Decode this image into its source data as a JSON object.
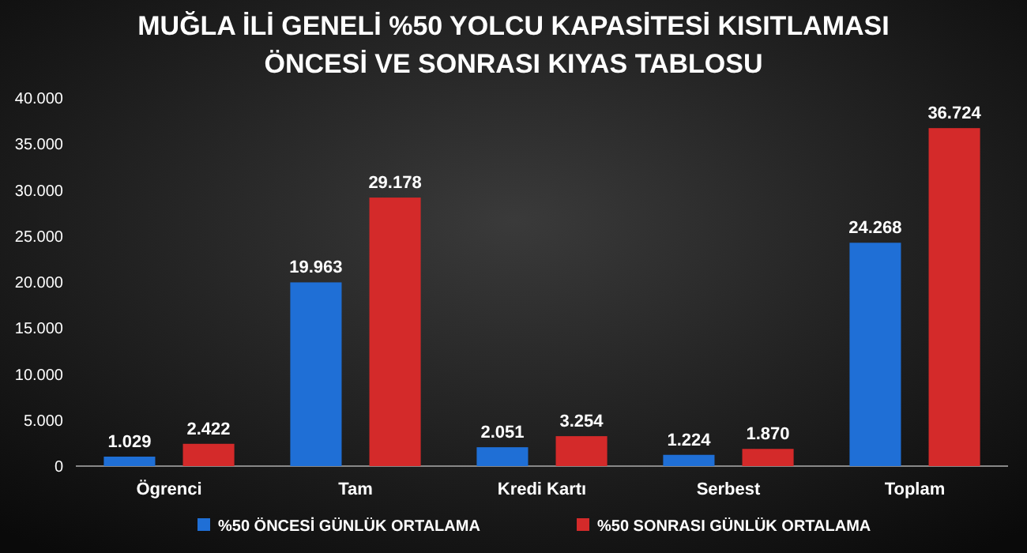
{
  "chart_data": {
    "type": "bar",
    "title": "MUĞLA İLİ GENELİ %50 YOLCU KAPASİTESİ KISITLAMASI\nÖNCESİ VE SONRASI KIYAS TABLOSU",
    "categories": [
      "Ögrenci",
      "Tam",
      "Kredi Kartı",
      "Serbest",
      "Toplam"
    ],
    "series": [
      {
        "name": "%50 ÖNCESİ GÜNLÜK ORTALAMA",
        "color": "#1f6fd6",
        "values": [
          1029,
          19963,
          2051,
          1224,
          24268
        ],
        "value_labels": [
          "1.029",
          "19.963",
          "2.051",
          "1.224",
          "24.268"
        ]
      },
      {
        "name": "%50 SONRASI GÜNLÜK ORTALAMA",
        "color": "#d42a2a",
        "values": [
          2422,
          29178,
          3254,
          1870,
          36724
        ],
        "value_labels": [
          "2.422",
          "29.178",
          "3.254",
          "1.870",
          "36.724"
        ]
      }
    ],
    "ylim": [
      0,
      40000
    ],
    "yticks": [
      0,
      {
        "value": 5000,
        "label": "5.000"
      },
      {
        "value": 10000,
        "label": "10.000"
      },
      {
        "value": 15000,
        "label": "15.000"
      },
      {
        "value": 20000,
        "label": "20.000"
      },
      {
        "value": 25000,
        "label": "25.000"
      },
      {
        "value": 30000,
        "label": "30.000"
      },
      {
        "value": 35000,
        "label": "35.000"
      },
      {
        "value": 40000,
        "label": "40.000"
      }
    ],
    "grid": false,
    "legend": "bottom"
  }
}
